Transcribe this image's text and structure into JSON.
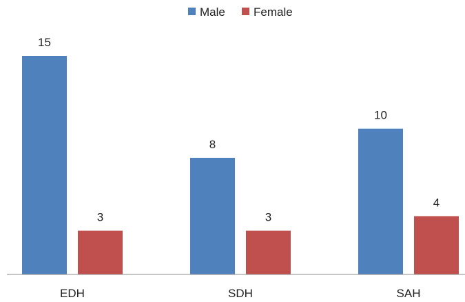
{
  "chart_data": {
    "type": "bar",
    "categories": [
      "EDH",
      "SDH",
      "SAH"
    ],
    "series": [
      {
        "name": "Male",
        "values": [
          15,
          8,
          10
        ],
        "color": "#4F81BD"
      },
      {
        "name": "Female",
        "values": [
          3,
          3,
          4
        ],
        "color": "#C0504D"
      }
    ],
    "ylim": [
      0,
      15
    ],
    "grid": false,
    "legend_position": "top-center",
    "data_labels": true
  }
}
